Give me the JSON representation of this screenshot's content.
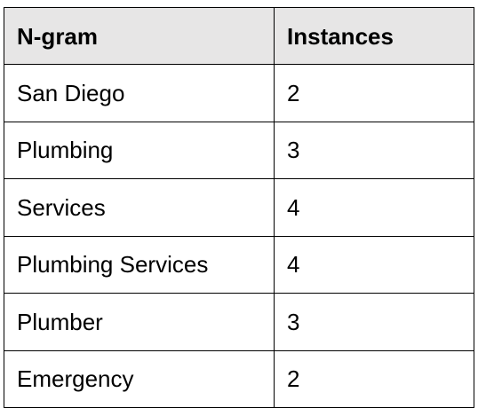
{
  "table": {
    "headers": [
      "N-gram",
      "Instances"
    ],
    "rows": [
      [
        "San Diego",
        "2"
      ],
      [
        "Plumbing",
        "3"
      ],
      [
        "Services",
        "4"
      ],
      [
        "Plumbing Services",
        "4"
      ],
      [
        "Plumber",
        "3"
      ],
      [
        "Emergency",
        "2"
      ]
    ]
  },
  "colors": {
    "header_background": "#e7e6e6",
    "border": "#000000",
    "body_background": "#ffffff"
  }
}
